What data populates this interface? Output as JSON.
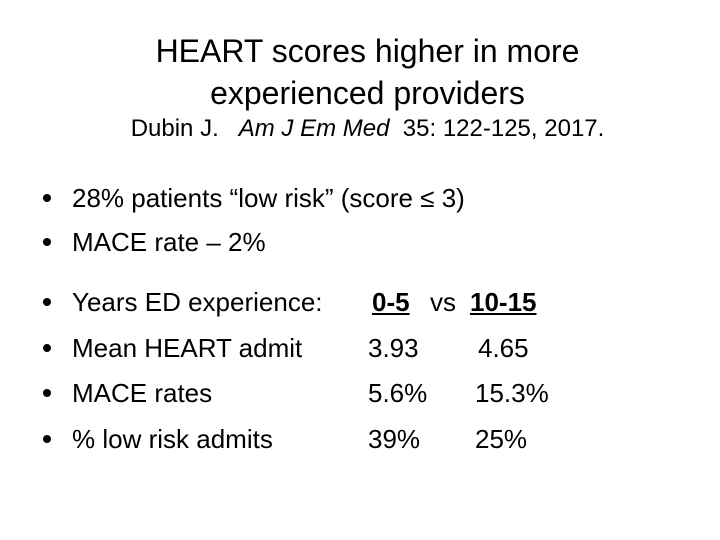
{
  "title": {
    "line1": "HEART scores higher in more",
    "line2": "experienced providers"
  },
  "citation": {
    "author": "Dubin J.",
    "journal": "Am J Em Med",
    "ref": "35: 122-125, 2017."
  },
  "bullets": [
    "28% patients “low risk”  (score ≤ 3)",
    "MACE rate – 2%"
  ],
  "table": {
    "header": {
      "label": "Years ED experience:",
      "col1": "0-5",
      "vs": "vs",
      "col2": "10-15"
    },
    "rows": [
      {
        "label": "Mean HEART admit",
        "col1": "3.93",
        "col2": "4.65"
      },
      {
        "label": "MACE rates",
        "col1": "5.6%",
        "col2": "15.3%"
      },
      {
        "label": "% low risk admits",
        "col1": "39%",
        "col2": "25%"
      }
    ]
  }
}
